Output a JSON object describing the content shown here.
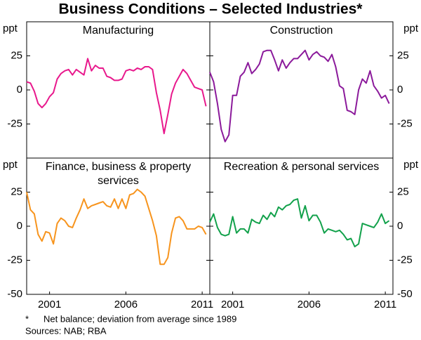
{
  "title": "Business Conditions – Selected Industries*",
  "notes": [
    "*",
    "Net balance; deviation from average since 1989",
    "Sources: NAB; RBA"
  ],
  "chart_data": [
    {
      "type": "line",
      "title": "Manufacturing",
      "ylabel": "ppt",
      "color": "#e8188c",
      "xlim": [
        2000,
        2012
      ],
      "ylim": [
        -50,
        50
      ],
      "yticks": [
        -25,
        0,
        25
      ],
      "x": [
        2000,
        2000.25,
        2000.5,
        2000.75,
        2001,
        2001.25,
        2001.5,
        2001.75,
        2002,
        2002.25,
        2002.5,
        2002.75,
        2003,
        2003.25,
        2003.5,
        2003.75,
        2004,
        2004.25,
        2004.5,
        2004.75,
        2005,
        2005.25,
        2005.5,
        2005.75,
        2006,
        2006.25,
        2006.5,
        2006.75,
        2007,
        2007.25,
        2007.5,
        2007.75,
        2008,
        2008.25,
        2008.5,
        2008.75,
        2009,
        2009.25,
        2009.5,
        2009.75,
        2010,
        2010.25,
        2010.5,
        2010.75,
        2011,
        2011.25,
        2011.5,
        2011.75
      ],
      "values": [
        6,
        5,
        -1,
        -10,
        -13,
        -10,
        -5,
        -2,
        8,
        12,
        14,
        15,
        11,
        15,
        13,
        11,
        23,
        14,
        18,
        16,
        16,
        10,
        9,
        7,
        7,
        8,
        14,
        15,
        14,
        16,
        15,
        17,
        17,
        15,
        -2,
        -15,
        -32,
        -18,
        -3,
        5,
        10,
        15,
        12,
        7,
        2,
        1,
        0,
        -12
      ]
    },
    {
      "type": "line",
      "title": "Construction",
      "ylabel": "ppt",
      "color": "#8b1a9b",
      "xlim": [
        2000,
        2012
      ],
      "ylim": [
        -50,
        50
      ],
      "yticks": [
        -25,
        0,
        25
      ],
      "x": [
        2000,
        2000.25,
        2000.5,
        2000.75,
        2001,
        2001.25,
        2001.5,
        2001.75,
        2002,
        2002.25,
        2002.5,
        2002.75,
        2003,
        2003.25,
        2003.5,
        2003.75,
        2004,
        2004.25,
        2004.5,
        2004.75,
        2005,
        2005.25,
        2005.5,
        2005.75,
        2006,
        2006.25,
        2006.5,
        2006.75,
        2007,
        2007.25,
        2007.5,
        2007.75,
        2008,
        2008.25,
        2008.5,
        2008.75,
        2009,
        2009.25,
        2009.5,
        2009.75,
        2010,
        2010.25,
        2010.5,
        2010.75,
        2011,
        2011.25,
        2011.5,
        2011.75
      ],
      "values": [
        13,
        6,
        -10,
        -29,
        -38,
        -33,
        -4,
        -4,
        10,
        13,
        20,
        12,
        15,
        19,
        28,
        29,
        29,
        22,
        14,
        22,
        16,
        20,
        23,
        23,
        26,
        29,
        22,
        26,
        28,
        25,
        24,
        21,
        26,
        17,
        3,
        1,
        -15,
        -16,
        -18,
        0,
        8,
        5,
        14,
        3,
        -1,
        -6,
        -4,
        -10
      ]
    },
    {
      "type": "line",
      "title": "Finance, business & property services",
      "ylabel": "ppt",
      "color": "#f7941d",
      "xlim": [
        2000,
        2012
      ],
      "ylim": [
        -50,
        50
      ],
      "yticks": [
        -50,
        -25,
        0,
        25
      ],
      "xticks": [
        {
          "value": 2001.5,
          "label": "2001"
        },
        {
          "value": 2006.5,
          "label": "2006"
        },
        {
          "value": 2011.5,
          "label": "2011"
        }
      ],
      "x": [
        2000,
        2000.25,
        2000.5,
        2000.75,
        2001,
        2001.25,
        2001.5,
        2001.75,
        2002,
        2002.25,
        2002.5,
        2002.75,
        2003,
        2003.25,
        2003.5,
        2003.75,
        2004,
        2004.25,
        2004.5,
        2004.75,
        2005,
        2005.25,
        2005.5,
        2005.75,
        2006,
        2006.25,
        2006.5,
        2006.75,
        2007,
        2007.25,
        2007.5,
        2007.75,
        2008,
        2008.25,
        2008.5,
        2008.75,
        2009,
        2009.25,
        2009.5,
        2009.75,
        2010,
        2010.25,
        2010.5,
        2010.75,
        2011,
        2011.25,
        2011.5,
        2011.75
      ],
      "values": [
        25,
        12,
        9,
        -6,
        -11,
        -4,
        -5,
        -13,
        2,
        6,
        4,
        0,
        -1,
        6,
        12,
        20,
        13,
        15,
        16,
        17,
        18,
        15,
        14,
        20,
        13,
        20,
        13,
        23,
        24,
        27,
        25,
        22,
        13,
        4,
        -7,
        -28,
        -28,
        -23,
        -5,
        6,
        7,
        4,
        -2,
        -2,
        -2,
        0,
        -1,
        -6
      ]
    },
    {
      "type": "line",
      "title": "Recreation & personal services",
      "ylabel": "ppt",
      "color": "#12a14b",
      "xlim": [
        2000,
        2012
      ],
      "ylim": [
        -50,
        50
      ],
      "yticks": [
        -50,
        -25,
        0,
        25
      ],
      "xticks": [
        {
          "value": 2001.5,
          "label": "2001"
        },
        {
          "value": 2006.5,
          "label": "2006"
        },
        {
          "value": 2011.5,
          "label": "2011"
        }
      ],
      "x": [
        2000,
        2000.25,
        2000.5,
        2000.75,
        2001,
        2001.25,
        2001.5,
        2001.75,
        2002,
        2002.25,
        2002.5,
        2002.75,
        2003,
        2003.25,
        2003.5,
        2003.75,
        2004,
        2004.25,
        2004.5,
        2004.75,
        2005,
        2005.25,
        2005.5,
        2005.75,
        2006,
        2006.25,
        2006.5,
        2006.75,
        2007,
        2007.25,
        2007.5,
        2007.75,
        2008,
        2008.25,
        2008.5,
        2008.75,
        2009,
        2009.25,
        2009.5,
        2009.75,
        2010,
        2010.25,
        2010.5,
        2010.75,
        2011,
        2011.25,
        2011.5,
        2011.75
      ],
      "values": [
        3,
        9,
        -1,
        -6,
        -7,
        -6,
        7,
        -5,
        -2,
        -2,
        -5,
        5,
        3,
        2,
        8,
        5,
        10,
        7,
        14,
        12,
        15,
        16,
        19,
        20,
        6,
        15,
        4,
        8,
        8,
        3,
        -5,
        -2,
        -3,
        -4,
        -3,
        -6,
        -10,
        -9,
        -15,
        -13,
        2,
        1,
        0,
        -1,
        3,
        9,
        2,
        4
      ]
    }
  ]
}
